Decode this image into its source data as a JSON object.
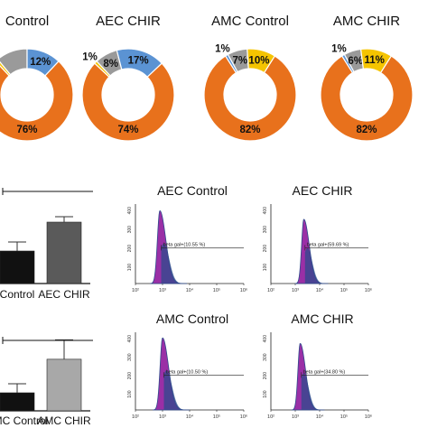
{
  "colors": {
    "orange": "#e8711c",
    "blue": "#5b93d3",
    "gray": "#9a9a9a",
    "yellow": "#f5c400",
    "black": "#111111",
    "light_gray": "#a8a8a8",
    "dark_gray": "#5a5a5a",
    "purple": "#9a2fa6",
    "navy": "#2e4b8c"
  },
  "chart_data": [
    {
      "type": "pie",
      "style": "donut",
      "title": "Control",
      "slices": [
        {
          "label": "76%",
          "value": 76,
          "color_key": "orange"
        },
        {
          "label": "1%",
          "value": 1,
          "color_key": "yellow"
        },
        {
          "label": "",
          "value": 11,
          "color_key": "gray"
        },
        {
          "label": "12%",
          "value": 12,
          "color_key": "blue"
        }
      ]
    },
    {
      "type": "pie",
      "style": "donut",
      "title": "AEC CHIR",
      "slices": [
        {
          "label": "74%",
          "value": 74,
          "color_key": "orange"
        },
        {
          "label": "1%",
          "value": 1,
          "color_key": "yellow"
        },
        {
          "label": "8%",
          "value": 8,
          "color_key": "gray"
        },
        {
          "label": "17%",
          "value": 17,
          "color_key": "blue"
        }
      ]
    },
    {
      "type": "pie",
      "style": "donut",
      "title": "AMC Control",
      "slices": [
        {
          "label": "82%",
          "value": 82,
          "color_key": "orange"
        },
        {
          "label": "1%",
          "value": 1,
          "color_key": "blue"
        },
        {
          "label": "7%",
          "value": 7,
          "color_key": "gray"
        },
        {
          "label": "10%",
          "value": 10,
          "color_key": "yellow"
        }
      ]
    },
    {
      "type": "pie",
      "style": "donut",
      "title": "AMC CHIR",
      "slices": [
        {
          "label": "82%",
          "value": 82,
          "color_key": "orange"
        },
        {
          "label": "1%",
          "value": 1,
          "color_key": "blue"
        },
        {
          "label": "6%",
          "value": 6,
          "color_key": "gray"
        },
        {
          "label": "11%",
          "value": 11,
          "color_key": "yellow"
        }
      ]
    },
    {
      "type": "bar",
      "categories": [
        "Control",
        "AEC CHIR"
      ],
      "values": [
        18,
        34
      ],
      "errors": [
        5,
        3
      ],
      "colors": [
        "black",
        "dark_gray"
      ],
      "ylim": [
        0,
        50
      ],
      "significance_bracket": true
    },
    {
      "type": "bar",
      "categories": [
        "AMC Control",
        "AMC CHIR"
      ],
      "values": [
        14,
        40
      ],
      "errors": [
        7,
        15
      ],
      "colors": [
        "black",
        "light_gray"
      ],
      "ylim": [
        0,
        70
      ],
      "significance_bracket": true
    },
    {
      "type": "area",
      "subtype": "histogram",
      "title": "AEC Control",
      "y_tick_labels": [
        "400",
        "300",
        "200",
        "100"
      ],
      "x_tick_labels": [
        "10²",
        "10³",
        "10⁴",
        "10⁵",
        "10⁶"
      ],
      "gate_label": "beta gal+(10.55 %)",
      "peak_x": 2.9,
      "peak_y": 385
    },
    {
      "type": "area",
      "subtype": "histogram",
      "title": "AEC CHIR",
      "y_tick_labels": [
        "400",
        "300",
        "200",
        "100"
      ],
      "x_tick_labels": [
        "10²",
        "10³",
        "10⁴",
        "10⁵",
        "10⁶"
      ],
      "gate_label": "beta gal+(59.69 %)",
      "peak_x": 3.35,
      "peak_y": 340
    },
    {
      "type": "area",
      "subtype": "histogram",
      "title": "AMC Control",
      "y_tick_labels": [
        "400",
        "300",
        "200",
        "100"
      ],
      "x_tick_labels": [
        "10²",
        "10³",
        "10⁴",
        "10⁵",
        "10⁶"
      ],
      "gate_label": "beta gal+(10.50 %)",
      "peak_x": 3.0,
      "peak_y": 390
    },
    {
      "type": "area",
      "subtype": "histogram",
      "title": "AMC CHIR",
      "y_tick_labels": [
        "400",
        "300",
        "200",
        "100"
      ],
      "x_tick_labels": [
        "10²",
        "10³",
        "10⁴",
        "10⁵",
        "10⁶"
      ],
      "gate_label": "beta gal+(34.80 %)",
      "peak_x": 3.2,
      "peak_y": 360
    }
  ]
}
